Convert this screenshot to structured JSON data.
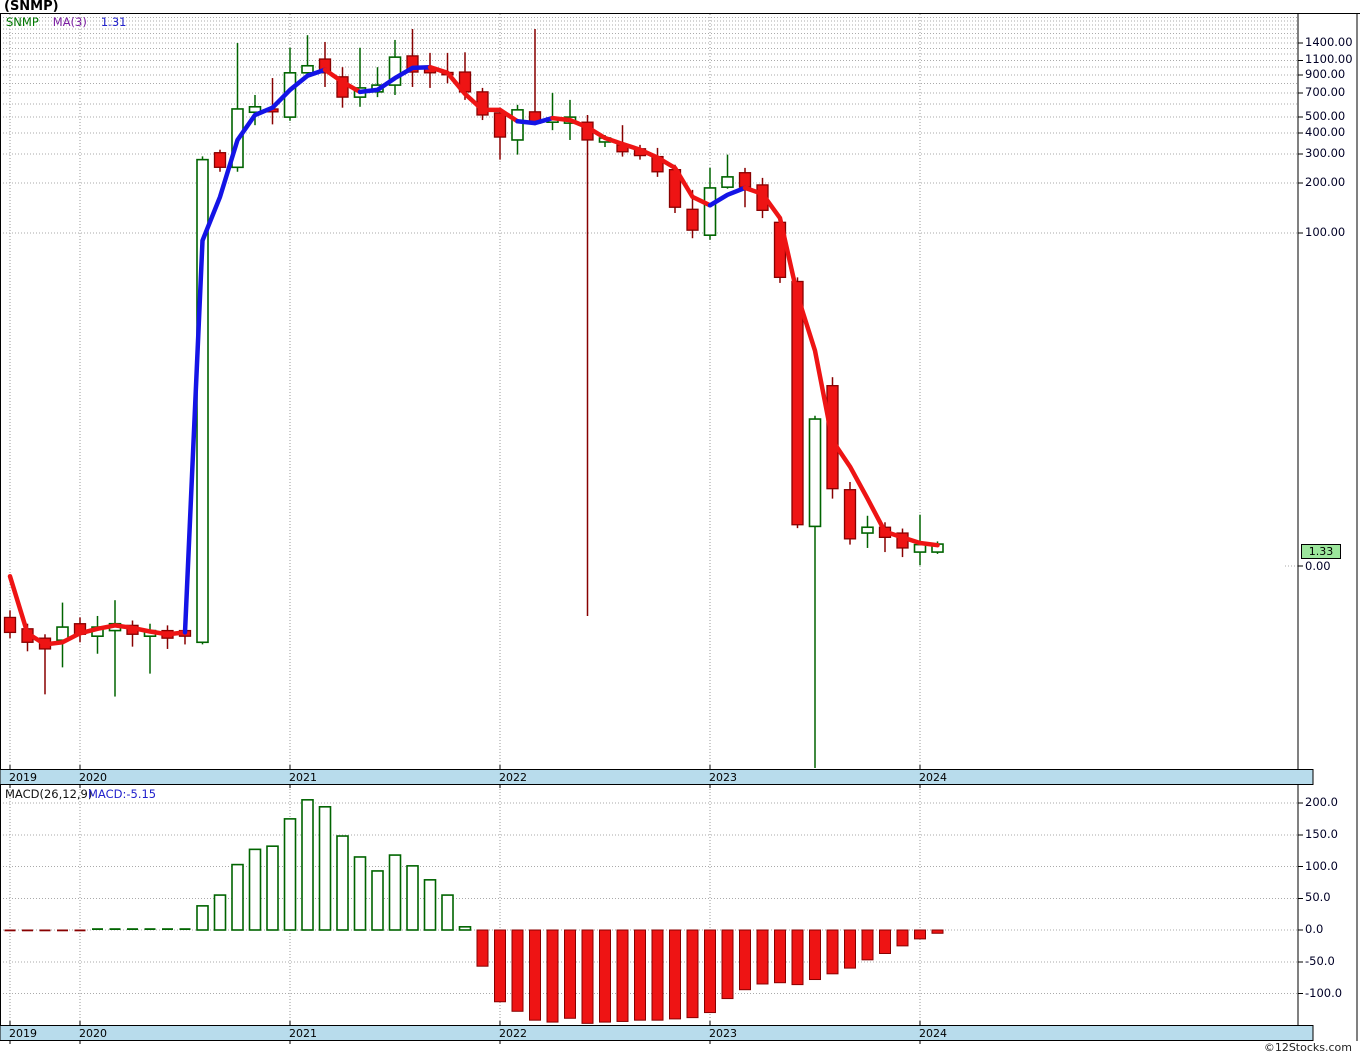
{
  "title": "(SNMP)",
  "watermark": "©12Stocks.com",
  "main_chart": {
    "legend": {
      "symbol": "SNMP",
      "ma_label": "MA(3)",
      "ma_value": "1.31"
    },
    "last_price_label": "1.33",
    "zero_label": "0.00"
  },
  "macd_chart": {
    "legend": {
      "params": "MACD(26,12,9)",
      "value": "MACD:-5.15"
    }
  },
  "colors": {
    "up_outline": "#006400",
    "down_fill": "#ee1414",
    "down_border": "#880000",
    "ma_blue": "#1414e6",
    "ma_red": "#ee1414",
    "strip_fill": "#b8dcec",
    "grid": "#aaaaaa",
    "vgrid": "#999999",
    "badge_fill": "#9ce69c"
  },
  "chart_data": [
    {
      "type": "candlestick",
      "symbol": "SNMP",
      "interval": "monthly",
      "scale": "log",
      "x_axis": {
        "year_ticks": [
          {
            "label": "2019",
            "i": 0
          },
          {
            "label": "2020",
            "i": 4
          },
          {
            "label": "2021",
            "i": 16
          },
          {
            "label": "2022",
            "i": 28
          },
          {
            "label": "2023",
            "i": 40
          },
          {
            "label": "2024",
            "i": 52
          }
        ]
      },
      "y_axis": {
        "ticks": [
          {
            "label": "1400.00",
            "v": 1400
          },
          {
            "label": "1100.00",
            "v": 1100
          },
          {
            "label": "900.00",
            "v": 900
          },
          {
            "label": "700.00",
            "v": 700
          },
          {
            "label": "500.00",
            "v": 500
          },
          {
            "label": "400.00",
            "v": 400
          },
          {
            "label": "300.00",
            "v": 300
          },
          {
            "label": "200.00",
            "v": 200
          },
          {
            "label": "100.00",
            "v": 100
          }
        ],
        "zero_tick": {
          "label": "0.00",
          "v": 0
        }
      },
      "last_price": 1.33,
      "candles": [
        [
          0.48,
          0.53,
          0.36,
          0.39,
          "r"
        ],
        [
          0.41,
          0.44,
          0.3,
          0.34,
          "r"
        ],
        [
          0.36,
          0.38,
          0.165,
          0.31,
          "r"
        ],
        [
          0.35,
          0.59,
          0.24,
          0.42,
          "g"
        ],
        [
          0.44,
          0.48,
          0.34,
          0.38,
          "r"
        ],
        [
          0.37,
          0.49,
          0.29,
          0.42,
          "g"
        ],
        [
          0.4,
          0.61,
          0.16,
          0.44,
          "g"
        ],
        [
          0.43,
          0.46,
          0.32,
          0.38,
          "r"
        ],
        [
          0.37,
          0.44,
          0.22,
          0.4,
          "g"
        ],
        [
          0.4,
          0.43,
          0.31,
          0.36,
          "r"
        ],
        [
          0.4,
          0.43,
          0.33,
          0.37,
          "r"
        ],
        [
          0.34,
          290,
          0.33,
          277,
          "g"
        ],
        [
          305,
          318,
          234,
          249,
          "r"
        ],
        [
          249,
          1400,
          234,
          560,
          "g"
        ],
        [
          535,
          680,
          447,
          577,
          "g"
        ],
        [
          560,
          860,
          452,
          538,
          "r"
        ],
        [
          500,
          1310,
          475,
          925,
          "g"
        ],
        [
          925,
          1560,
          900,
          1020,
          "g"
        ],
        [
          1120,
          1420,
          760,
          925,
          "r"
        ],
        [
          875,
          1000,
          570,
          660,
          "r"
        ],
        [
          660,
          1310,
          577,
          750,
          "g"
        ],
        [
          710,
          1000,
          660,
          780,
          "g"
        ],
        [
          780,
          1460,
          680,
          1150,
          "g"
        ],
        [
          1170,
          1700,
          760,
          935,
          "r"
        ],
        [
          1000,
          1220,
          750,
          925,
          "r"
        ],
        [
          930,
          1220,
          800,
          900,
          "r"
        ],
        [
          935,
          1230,
          635,
          710,
          "r"
        ],
        [
          710,
          750,
          480,
          515,
          "r"
        ],
        [
          530,
          570,
          277,
          379,
          "r"
        ],
        [
          364,
          593,
          297,
          553,
          "g"
        ],
        [
          538,
          1700,
          447,
          460,
          "r"
        ],
        [
          466,
          700,
          417,
          493,
          "g"
        ],
        [
          460,
          635,
          364,
          500,
          "g"
        ],
        [
          466,
          515,
          0.49,
          364,
          "r"
        ],
        [
          354,
          390,
          330,
          374,
          "g"
        ],
        [
          340,
          447,
          289,
          309,
          "r"
        ],
        [
          322,
          340,
          277,
          293,
          "r"
        ],
        [
          289,
          326,
          218,
          234,
          "r"
        ],
        [
          241,
          258,
          132,
          143,
          "r"
        ],
        [
          139,
          182,
          93,
          104,
          "r"
        ],
        [
          97,
          247,
          91,
          187,
          "g"
        ],
        [
          189,
          297,
          185,
          218,
          "g"
        ],
        [
          231,
          247,
          143,
          189,
          "r"
        ],
        [
          195,
          215,
          123,
          137,
          "r"
        ],
        [
          116,
          123,
          50,
          54,
          "r"
        ],
        [
          51,
          54,
          1.66,
          1.74,
          "r"
        ],
        [
          1.7,
          7.9,
          0.006,
          7.55,
          "g"
        ],
        [
          12.0,
          13.5,
          2.5,
          2.87,
          "r"
        ],
        [
          2.83,
          3.15,
          1.32,
          1.43,
          "r"
        ],
        [
          1.55,
          1.97,
          1.26,
          1.68,
          "g"
        ],
        [
          1.68,
          1.8,
          1.19,
          1.46,
          "r"
        ],
        [
          1.55,
          1.65,
          1.11,
          1.26,
          "r"
        ],
        [
          1.19,
          2.0,
          0.99,
          1.32,
          "g"
        ],
        [
          1.19,
          1.38,
          1.16,
          1.33,
          "g"
        ]
      ],
      "ma3": {
        "values": [
          0.85,
          0.385,
          0.33,
          0.34,
          0.385,
          0.41,
          0.43,
          0.415,
          0.395,
          0.38,
          0.39,
          90,
          165,
          364,
          515,
          570,
          730,
          887,
          965,
          815,
          710,
          730,
          860,
          990,
          1000,
          925,
          690,
          553,
          553,
          472,
          460,
          493,
          480,
          434,
          374,
          344,
          318,
          285,
          247,
          165,
          147,
          170,
          187,
          172,
          123,
          42,
          19.5,
          5.6,
          3.9,
          2.5,
          1.58,
          1.46,
          1.35,
          1.31
        ],
        "segments": [
          [
            0,
            10,
            "r"
          ],
          [
            10,
            18,
            "b"
          ],
          [
            18,
            20,
            "r"
          ],
          [
            20,
            24,
            "b"
          ],
          [
            24,
            29,
            "r"
          ],
          [
            29,
            31,
            "b"
          ],
          [
            31,
            40,
            "r"
          ],
          [
            40,
            42,
            "b"
          ],
          [
            42,
            53,
            "r"
          ]
        ]
      }
    },
    {
      "type": "bar",
      "name": "MACD(26,12,9) histogram",
      "last_value": -5.15,
      "y_axis": {
        "ticks": [
          {
            "label": "200.0",
            "v": 200
          },
          {
            "label": "150.0",
            "v": 150
          },
          {
            "label": "100.0",
            "v": 100
          },
          {
            "label": "50.0",
            "v": 50
          },
          {
            "label": "0.0",
            "v": 0
          },
          {
            "label": "-50.0",
            "v": -50
          },
          {
            "label": "-100.0",
            "v": -100
          }
        ]
      },
      "values": [
        -1.2,
        -1.2,
        -1.2,
        -1.2,
        -1.2,
        1.2,
        1.2,
        1.2,
        1.2,
        1.2,
        1.2,
        38,
        55,
        103,
        127,
        132,
        175,
        205,
        194,
        148,
        115,
        93,
        118,
        101,
        79,
        55,
        5,
        -57,
        -113,
        -128,
        -142,
        -145,
        -139,
        -147,
        -145,
        -144,
        -142,
        -142,
        -140,
        -138,
        -130,
        -108,
        -94,
        -85,
        -83,
        -86,
        -78,
        -69,
        -60,
        -47,
        -37,
        -25,
        -14,
        -5.15
      ]
    }
  ]
}
